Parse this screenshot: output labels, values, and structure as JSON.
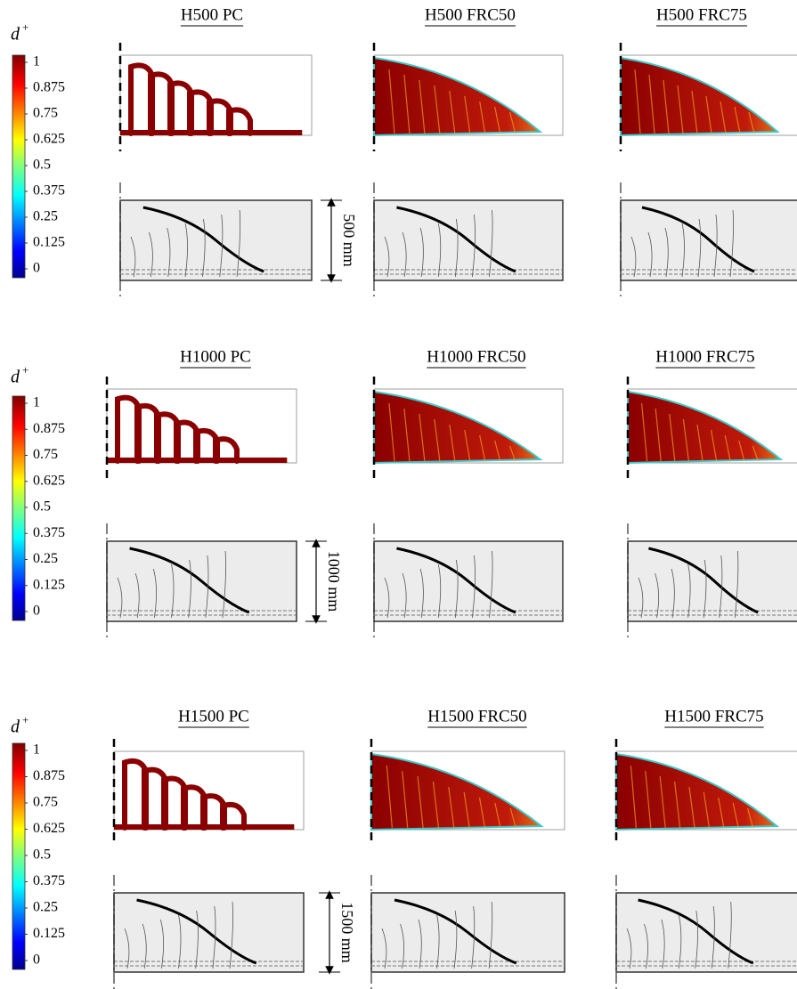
{
  "rows": [
    {
      "colorbar": {
        "label": {
          "symbol": "d",
          "superscript": "+"
        },
        "ticks": [
          1,
          0.875,
          0.75,
          0.625,
          0.5,
          0.375,
          0.25,
          0.125,
          0
        ]
      },
      "panels": [
        "H500 PC",
        "H500 FRC50",
        "H500 FRC75"
      ],
      "dimension": "500 mm"
    },
    {
      "colorbar": {
        "label": {
          "symbol": "d",
          "superscript": "+"
        },
        "ticks": [
          1,
          0.875,
          0.75,
          0.625,
          0.5,
          0.375,
          0.25,
          0.125,
          0
        ]
      },
      "panels": [
        "H1000 PC",
        "H1000 FRC50",
        "H1000 FRC75"
      ],
      "dimension": "1000 mm"
    },
    {
      "colorbar": {
        "label": {
          "symbol": "d",
          "superscript": "+"
        },
        "ticks": [
          1,
          0.875,
          0.75,
          0.625,
          0.5,
          0.375,
          0.25,
          0.125,
          0
        ]
      },
      "panels": [
        "H1500 PC",
        "H1500 FRC50",
        "H1500 FRC75"
      ],
      "dimension": "1500 mm"
    }
  ]
}
